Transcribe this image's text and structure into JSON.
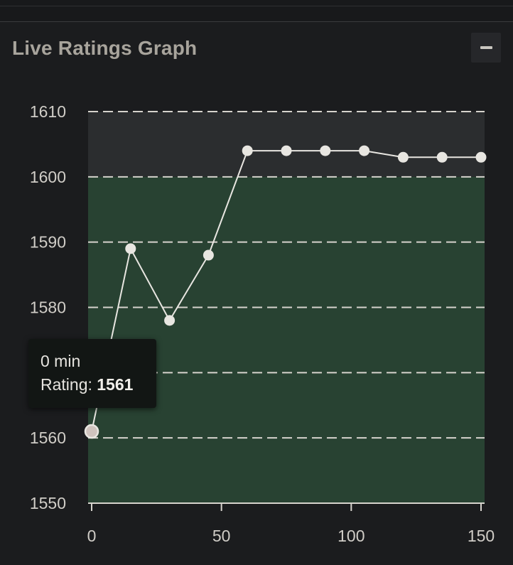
{
  "panel": {
    "title": "Live Ratings Graph",
    "collapse_icon": "minus-icon"
  },
  "tooltip": {
    "time_label": "0 min",
    "rating_label": "Rating: ",
    "rating_value": "1561"
  },
  "colors": {
    "background": "#1b1c1e",
    "band_upper": "#2b2d2f",
    "band_lower": "#284232",
    "line": "#e8e6e1",
    "grid": "#d6d3cd",
    "tick_text": "#d0cdc7"
  },
  "chart_data": {
    "type": "line",
    "x": [
      0,
      15,
      30,
      45,
      60,
      75,
      90,
      105,
      120,
      135,
      150
    ],
    "series": [
      {
        "values": [
          1561,
          1589,
          1578,
          1588,
          1604,
          1604,
          1604,
          1604,
          1603,
          1603,
          1603
        ]
      }
    ],
    "highlight_index": 0,
    "band_threshold": 1600,
    "xlim": [
      0,
      150
    ],
    "ylim": [
      1550,
      1610
    ],
    "xticks": [
      0,
      50,
      100,
      150
    ],
    "yticks": [
      1550,
      1560,
      1570,
      1580,
      1590,
      1600,
      1610
    ],
    "ytick_labels": [
      "1550",
      "1560",
      "",
      "1580",
      "1590",
      "1600",
      "1610"
    ],
    "grid": "horizontal dashed",
    "title": "",
    "xlabel": "",
    "ylabel": ""
  }
}
